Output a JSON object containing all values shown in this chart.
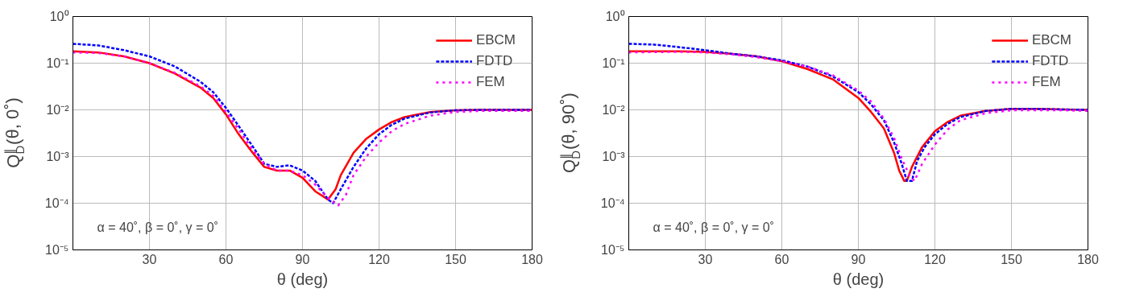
{
  "chart_data": [
    {
      "type": "line",
      "xlabel": "θ (deg)",
      "ylabel": "Q$^{∥}$$_{D}$(θ, 0˚)",
      "annotations": [
        "α = 40˚, β = 0˚, γ = 0˚"
      ],
      "xlim": [
        0,
        180
      ],
      "xticks": [
        30,
        60,
        90,
        120,
        150,
        180
      ],
      "ylim": [
        1e-05,
        1
      ],
      "log": "y",
      "yticks": [
        {
          "value": 1e-05,
          "label": "10⁻⁵"
        },
        {
          "value": 0.0001,
          "label": "10⁻⁴"
        },
        {
          "value": 0.001,
          "label": "10⁻³"
        },
        {
          "value": 0.01,
          "label": "10⁻²"
        },
        {
          "value": 0.1,
          "label": "10⁻¹"
        },
        {
          "value": 1,
          "label": "10⁰"
        }
      ],
      "grid": true,
      "legend": "top right",
      "series": [
        {
          "name": "EBCM",
          "color": "#ff0000",
          "line_style": "solid",
          "x": [
            0,
            10,
            20,
            30,
            40,
            50,
            55,
            60,
            65,
            70,
            75,
            80,
            85,
            90,
            95,
            100,
            103,
            105,
            110,
            115,
            120,
            125,
            130,
            140,
            150,
            160,
            170,
            180
          ],
          "values": [
            0.18,
            0.17,
            0.14,
            0.1,
            0.06,
            0.03,
            0.018,
            0.008,
            0.003,
            0.0013,
            0.0006,
            0.0005,
            0.0005,
            0.00035,
            0.00018,
            0.00012,
            0.0002,
            0.0004,
            0.0012,
            0.0024,
            0.0038,
            0.0055,
            0.007,
            0.009,
            0.0098,
            0.01,
            0.01,
            0.01
          ]
        },
        {
          "name": "FDTD",
          "color": "#0000ff",
          "line_style": "dashed",
          "x": [
            0,
            10,
            20,
            30,
            40,
            50,
            55,
            60,
            65,
            70,
            75,
            80,
            85,
            90,
            95,
            100,
            102,
            105,
            110,
            115,
            120,
            125,
            130,
            140,
            150,
            160,
            170,
            180
          ],
          "values": [
            0.26,
            0.24,
            0.19,
            0.14,
            0.085,
            0.04,
            0.024,
            0.011,
            0.0045,
            0.0018,
            0.0007,
            0.0006,
            0.00065,
            0.0005,
            0.0003,
            0.00012,
            0.0001,
            0.0002,
            0.0006,
            0.0015,
            0.003,
            0.0048,
            0.0065,
            0.0088,
            0.0098,
            0.01,
            0.01,
            0.01
          ]
        },
        {
          "name": "FEM",
          "color": "#ff00ff",
          "line_style": "dotted",
          "x": [
            0,
            10,
            20,
            30,
            40,
            50,
            55,
            60,
            65,
            70,
            75,
            80,
            85,
            90,
            95,
            100,
            104,
            107,
            110,
            115,
            120,
            125,
            130,
            140,
            150,
            160,
            170,
            180
          ],
          "values": [
            0.17,
            0.165,
            0.14,
            0.1,
            0.062,
            0.032,
            0.02,
            0.009,
            0.0038,
            0.0015,
            0.0007,
            0.0005,
            0.0005,
            0.0004,
            0.00025,
            0.00013,
            9e-05,
            0.00015,
            0.0004,
            0.001,
            0.002,
            0.0035,
            0.005,
            0.0075,
            0.009,
            0.0095,
            0.0095,
            0.0095
          ]
        }
      ]
    },
    {
      "type": "line",
      "xlabel": "θ (deg)",
      "ylabel": "Q$^{∥}$$_{D}$(θ, 90˚)",
      "annotations": [
        "α = 40˚, β = 0˚, γ = 0˚"
      ],
      "xlim": [
        0,
        180
      ],
      "xticks": [
        30,
        60,
        90,
        120,
        150,
        180
      ],
      "ylim": [
        1e-05,
        1
      ],
      "log": "y",
      "yticks": [
        {
          "value": 1e-05,
          "label": "10⁻⁵"
        },
        {
          "value": 0.0001,
          "label": "10⁻⁴"
        },
        {
          "value": 0.001,
          "label": "10⁻³"
        },
        {
          "value": 0.01,
          "label": "10⁻²"
        },
        {
          "value": 0.1,
          "label": "10⁻¹"
        },
        {
          "value": 1,
          "label": "10⁰"
        }
      ],
      "grid": true,
      "legend": "top right",
      "series": [
        {
          "name": "EBCM",
          "color": "#ff0000",
          "line_style": "solid",
          "x": [
            0,
            20,
            30,
            40,
            50,
            60,
            70,
            80,
            90,
            95,
            100,
            104,
            106,
            108,
            109,
            111,
            115,
            120,
            125,
            130,
            140,
            150,
            160,
            170,
            180
          ],
          "values": [
            0.18,
            0.18,
            0.175,
            0.16,
            0.14,
            0.11,
            0.075,
            0.045,
            0.018,
            0.009,
            0.004,
            0.0012,
            0.0005,
            0.0003,
            0.0003,
            0.0006,
            0.0016,
            0.0035,
            0.0055,
            0.0075,
            0.0095,
            0.0105,
            0.0105,
            0.0102,
            0.01
          ]
        },
        {
          "name": "FDTD",
          "color": "#0000ff",
          "line_style": "dashed",
          "x": [
            0,
            10,
            20,
            30,
            40,
            50,
            60,
            70,
            80,
            90,
            95,
            100,
            104,
            107,
            109,
            111,
            113,
            116,
            120,
            125,
            130,
            140,
            150,
            160,
            170,
            180
          ],
          "values": [
            0.26,
            0.25,
            0.22,
            0.19,
            0.16,
            0.14,
            0.115,
            0.085,
            0.052,
            0.024,
            0.013,
            0.006,
            0.002,
            0.0007,
            0.0003,
            0.0003,
            0.0008,
            0.0016,
            0.003,
            0.005,
            0.007,
            0.0095,
            0.0105,
            0.0105,
            0.0102,
            0.01
          ]
        },
        {
          "name": "FEM",
          "color": "#ff00ff",
          "line_style": "dotted",
          "x": [
            0,
            20,
            30,
            40,
            50,
            60,
            70,
            80,
            90,
            95,
            100,
            104,
            107,
            110,
            112,
            115,
            120,
            125,
            130,
            140,
            150,
            160,
            170,
            180
          ],
          "values": [
            0.17,
            0.175,
            0.17,
            0.155,
            0.135,
            0.11,
            0.085,
            0.055,
            0.026,
            0.015,
            0.0065,
            0.0025,
            0.0009,
            0.0004,
            0.0003,
            0.0007,
            0.0018,
            0.0038,
            0.006,
            0.0085,
            0.0098,
            0.0098,
            0.0098,
            0.0095
          ]
        }
      ]
    }
  ]
}
